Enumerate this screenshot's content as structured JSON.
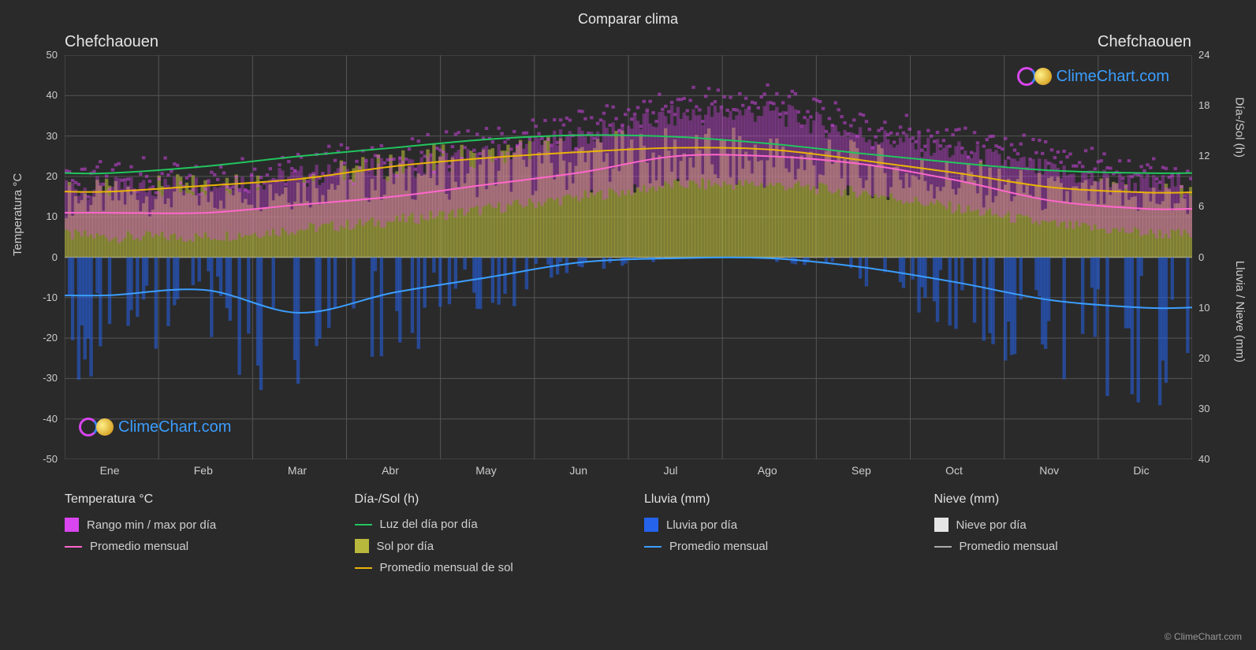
{
  "chart": {
    "type": "climate-combo",
    "title": "Comparar clima",
    "location_left": "Chefchaouen",
    "location_right": "Chefchaouen",
    "background_color": "#2a2a2a",
    "grid_color": "#555555",
    "axis_color": "#cccccc",
    "watermark_text": "ClimeChart.com",
    "watermark_color": "#3b9eff",
    "copyright": "© ClimeChart.com",
    "y_left": {
      "label": "Temperatura °C",
      "min": -50,
      "max": 50,
      "tick_step": 10,
      "ticks": [
        "50",
        "40",
        "30",
        "20",
        "10",
        "0",
        "-10",
        "-20",
        "-30",
        "-40",
        "-50"
      ]
    },
    "y_right_top": {
      "label": "Día-/Sol (h)",
      "min": 0,
      "max": 24,
      "tick_step": 6,
      "ticks": [
        "24",
        "18",
        "12",
        "6",
        "0"
      ]
    },
    "y_right_bottom": {
      "label": "Lluvia / Nieve (mm)",
      "min": 0,
      "max": 40,
      "tick_step": 10,
      "ticks": [
        "0",
        "10",
        "20",
        "30",
        "40"
      ]
    },
    "months": [
      "Ene",
      "Feb",
      "Mar",
      "Abr",
      "May",
      "Jun",
      "Jul",
      "Ago",
      "Sep",
      "Oct",
      "Nov",
      "Dic"
    ],
    "series": {
      "temp_avg": {
        "color": "#ff66cc",
        "width": 2,
        "values": [
          11,
          11,
          13,
          15,
          18,
          21,
          25,
          25,
          23,
          19,
          14,
          12
        ]
      },
      "temp_max_band": {
        "color": "#d946ef",
        "values": [
          17,
          18,
          20,
          22,
          25,
          30,
          35,
          36,
          30,
          26,
          21,
          18
        ]
      },
      "temp_min_band": {
        "color": "#d946ef",
        "values": [
          5,
          5,
          7,
          9,
          12,
          15,
          18,
          18,
          16,
          12,
          8,
          6
        ]
      },
      "daylight": {
        "color": "#22c55e",
        "width": 2,
        "values": [
          10,
          10.8,
          12,
          13,
          14,
          14.5,
          14.3,
          13.5,
          12.3,
          11.2,
          10.3,
          10
        ]
      },
      "sun_avg": {
        "color": "#eab308",
        "width": 2,
        "values": [
          7.8,
          8.5,
          9.3,
          10.8,
          11.8,
          12.5,
          13,
          12.8,
          11.5,
          10,
          8.3,
          7.7
        ]
      },
      "sun_fill": {
        "color": "#b8b83d"
      },
      "rain_avg": {
        "color": "#3b9eff",
        "width": 2,
        "values": [
          7.5,
          6.5,
          11,
          7,
          4,
          1,
          0.2,
          0.2,
          2,
          5,
          8.5,
          10
        ]
      },
      "rain_fill": {
        "color": "#2563eb"
      },
      "snow_fill": {
        "color": "#e5e5e5"
      }
    },
    "legend": {
      "cols": [
        {
          "header": "Temperatura °C",
          "items": [
            {
              "type": "rect",
              "color": "#d946ef",
              "label": "Rango min / max por día"
            },
            {
              "type": "line",
              "color": "#ff66cc",
              "label": "Promedio mensual"
            }
          ]
        },
        {
          "header": "Día-/Sol (h)",
          "items": [
            {
              "type": "line",
              "color": "#22c55e",
              "label": "Luz del día por día"
            },
            {
              "type": "rect",
              "color": "#b8b83d",
              "label": "Sol por día"
            },
            {
              "type": "line",
              "color": "#eab308",
              "label": "Promedio mensual de sol"
            }
          ]
        },
        {
          "header": "Lluvia (mm)",
          "items": [
            {
              "type": "rect",
              "color": "#2563eb",
              "label": "Lluvia por día"
            },
            {
              "type": "line",
              "color": "#3b9eff",
              "label": "Promedio mensual"
            }
          ]
        },
        {
          "header": "Nieve (mm)",
          "items": [
            {
              "type": "rect",
              "color": "#e5e5e5",
              "label": "Nieve por día"
            },
            {
              "type": "line",
              "color": "#aaaaaa",
              "label": "Promedio mensual"
            }
          ]
        }
      ]
    }
  }
}
